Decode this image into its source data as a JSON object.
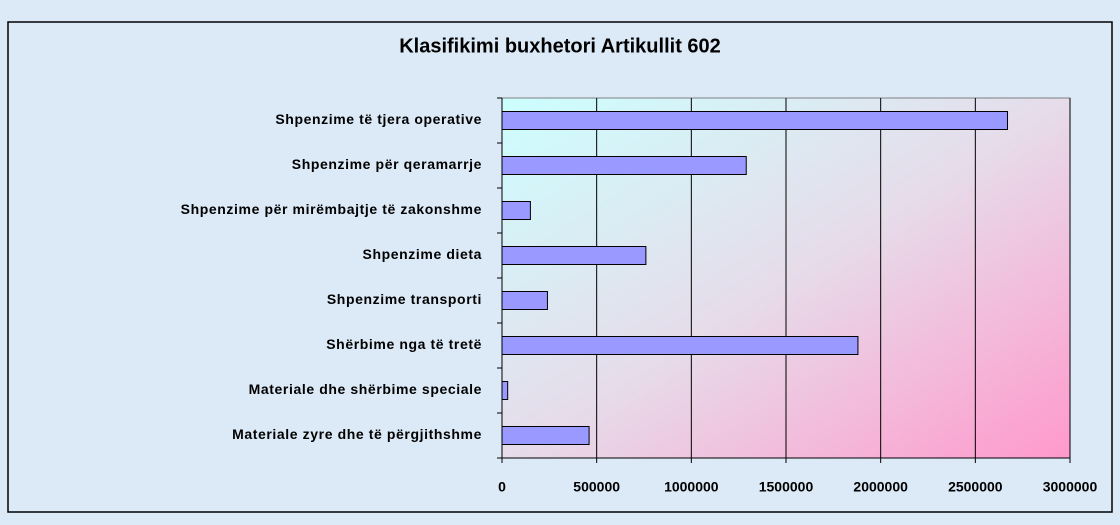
{
  "chart_data": {
    "type": "bar",
    "orientation": "horizontal",
    "title": "Klasifikimi buxhetori Artikullit 602",
    "categories": [
      "Shpenzime të tjera operative",
      "Shpenzime për qeramarrje",
      "Shpenzime për mirëmbajtje të zakonshme",
      "Shpenzime dieta",
      "Shpenzime transporti",
      "Shërbime nga të tretë",
      "Materiale dhe shërbime speciale",
      "Materiale zyre dhe të përgjithshme"
    ],
    "values": [
      2670000,
      1290000,
      150000,
      760000,
      240000,
      1880000,
      30000,
      460000
    ],
    "color": "#9999ff",
    "xlim": [
      0,
      3000000
    ],
    "xticks": [
      0,
      500000,
      1000000,
      1500000,
      2000000,
      2500000,
      3000000
    ],
    "grid": true
  }
}
